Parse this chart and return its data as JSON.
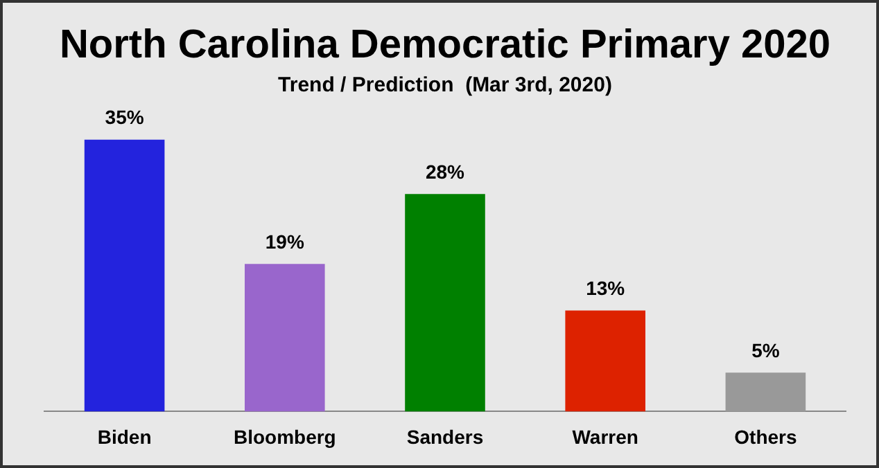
{
  "chart_data": {
    "type": "bar",
    "title": "North Carolina Democratic Primary 2020",
    "subtitle": "Trend / Prediction  (Mar 3rd, 2020)",
    "categories": [
      "Biden",
      "Bloomberg",
      "Sanders",
      "Warren",
      "Others"
    ],
    "values": [
      35,
      19,
      28,
      13,
      5
    ],
    "colors": [
      "#2323dd",
      "#9966cc",
      "#008000",
      "#dd2200",
      "#999999"
    ],
    "value_labels": [
      "35%",
      "19%",
      "28%",
      "13%",
      "5%"
    ],
    "tick_labels": "x",
    "grid": false,
    "legend": false
  }
}
